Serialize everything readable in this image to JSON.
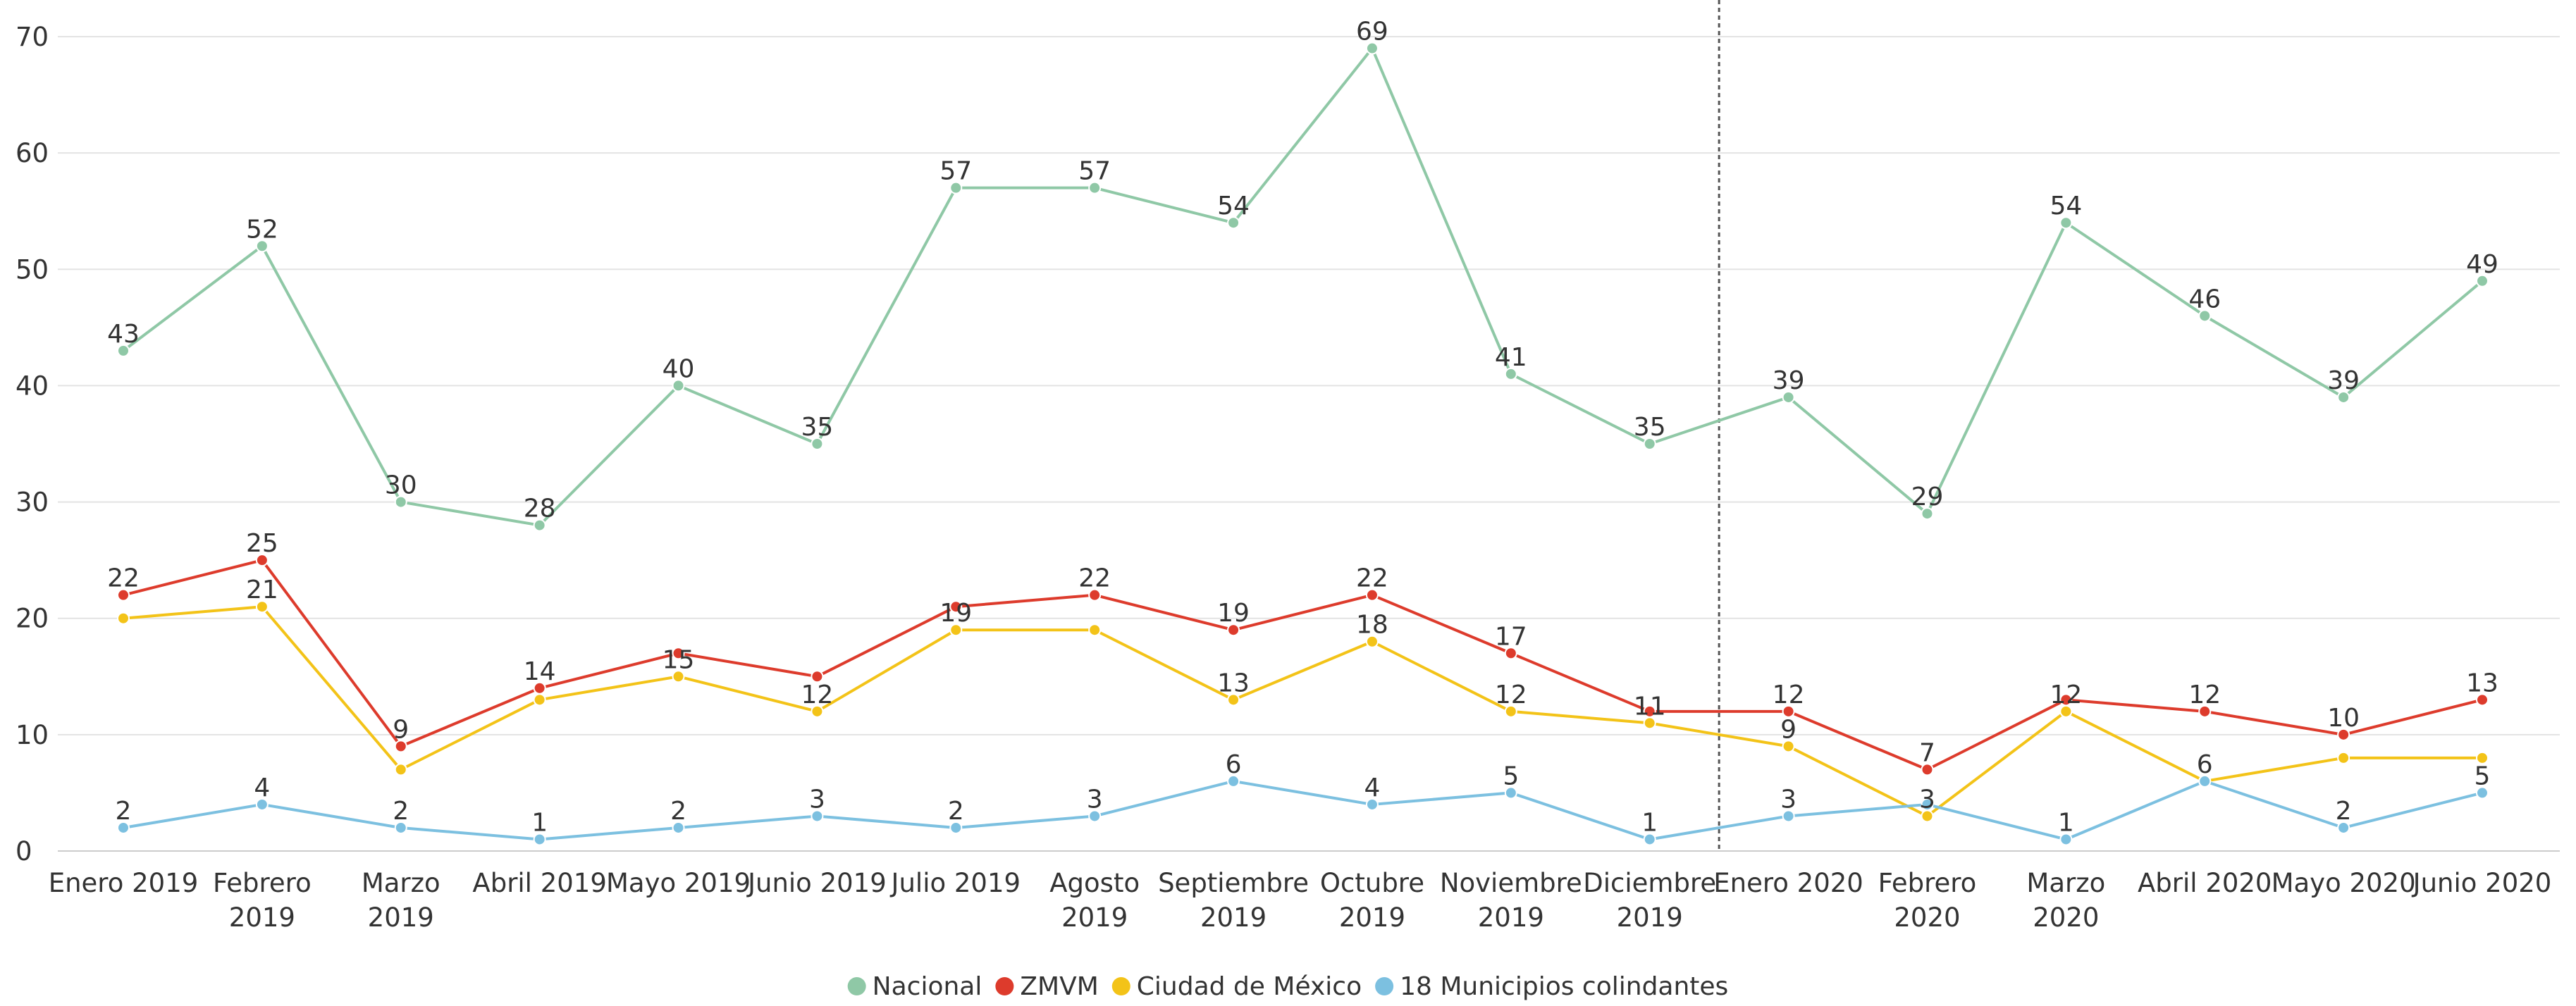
{
  "chart_data": {
    "type": "line",
    "title": "",
    "xlabel": "",
    "ylabel": "",
    "ylim": [
      0,
      70
    ],
    "yticks": [
      0,
      10,
      20,
      30,
      40,
      50,
      60,
      70
    ],
    "grid": true,
    "legend_position": "bottom",
    "categories": [
      "Enero 2019",
      "Febrero 2019",
      "Marzo 2019",
      "Abril 2019",
      "Mayo 2019",
      "Junio 2019",
      "Julio 2019",
      "Agosto 2019",
      "Septiembre 2019",
      "Octubre 2019",
      "Noviembre 2019",
      "Diciembre 2019",
      "Enero 2020",
      "Febrero 2020",
      "Marzo 2020",
      "Abril 2020",
      "Mayo 2020",
      "Junio 2020"
    ],
    "category_lines": [
      [
        "Enero 2019"
      ],
      [
        "Febrero",
        "2019"
      ],
      [
        "Marzo",
        "2019"
      ],
      [
        "Abril 2019"
      ],
      [
        "Mayo 2019"
      ],
      [
        "Junio 2019"
      ],
      [
        "Julio 2019"
      ],
      [
        "Agosto",
        "2019"
      ],
      [
        "Septiembre",
        "2019"
      ],
      [
        "Octubre",
        "2019"
      ],
      [
        "Noviembre",
        "2019"
      ],
      [
        "Diciembre",
        "2019"
      ],
      [
        "Enero 2020"
      ],
      [
        "Febrero",
        "2020"
      ],
      [
        "Marzo",
        "2020"
      ],
      [
        "Abril 2020"
      ],
      [
        "Mayo 2020"
      ],
      [
        "Junio 2020"
      ]
    ],
    "divider_between": [
      "Diciembre 2019",
      "Enero 2020"
    ],
    "series": [
      {
        "name": "Nacional",
        "color": "#8fc8a6",
        "values": [
          43,
          52,
          30,
          28,
          40,
          35,
          57,
          57,
          54,
          69,
          41,
          35,
          39,
          29,
          54,
          46,
          39,
          49
        ],
        "labels": [
          "43",
          "52",
          "30",
          "28",
          "40",
          "35",
          "57",
          "57",
          "54",
          "69",
          "41",
          "35",
          "39",
          "29",
          "54",
          "46",
          "39",
          "49"
        ]
      },
      {
        "name": "ZMVM",
        "color": "#dd3b2c",
        "values": [
          22,
          25,
          9,
          14,
          17,
          15,
          21,
          22,
          19,
          22,
          17,
          12,
          12,
          7,
          13,
          12,
          10,
          13
        ],
        "labels": [
          "22",
          "25",
          "9",
          "14",
          "",
          "",
          "",
          "22",
          "19",
          "22",
          "17",
          "",
          "12",
          "7",
          "",
          "12",
          "10",
          "13"
        ]
      },
      {
        "name": "Ciudad de México",
        "color": "#f3c318",
        "values": [
          20,
          21,
          7,
          13,
          15,
          12,
          19,
          19,
          13,
          18,
          12,
          11,
          9,
          3,
          12,
          6,
          8,
          8
        ],
        "labels": [
          "",
          "21",
          "",
          "",
          "15",
          "12",
          "19",
          "",
          "13",
          "18",
          "12",
          "11",
          "9",
          "3",
          "12",
          "",
          "",
          ""
        ]
      },
      {
        "name": "18 Municipios colindantes",
        "color": "#7cc0e0",
        "values": [
          2,
          4,
          2,
          1,
          2,
          3,
          2,
          3,
          6,
          4,
          5,
          1,
          3,
          4,
          1,
          6,
          2,
          5
        ],
        "labels": [
          "2",
          "4",
          "2",
          "1",
          "2",
          "3",
          "2",
          "3",
          "6",
          "4",
          "5",
          "1",
          "3",
          "",
          "1",
          "6",
          "2",
          "5"
        ]
      }
    ]
  }
}
